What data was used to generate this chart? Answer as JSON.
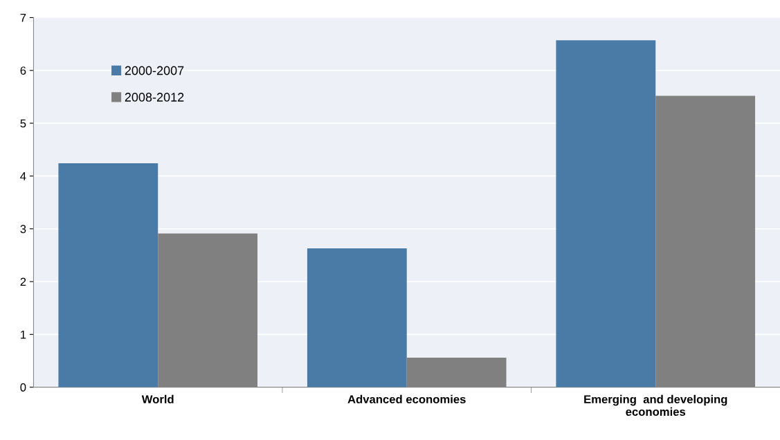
{
  "chart_data": {
    "type": "bar",
    "categories": [
      "World",
      "Advanced economies",
      "Emerging  and developing\neconomies"
    ],
    "series": [
      {
        "name": "2000-2007",
        "color": "#4a7aa6",
        "values": [
          4.24,
          2.63,
          6.57
        ]
      },
      {
        "name": "2008-2012",
        "color": "#808080",
        "values": [
          2.91,
          0.56,
          5.52
        ]
      }
    ],
    "ylim": [
      0,
      7
    ],
    "yticks": [
      0,
      1,
      2,
      3,
      4,
      5,
      6,
      7
    ],
    "grid": "y",
    "legend": "top left"
  }
}
